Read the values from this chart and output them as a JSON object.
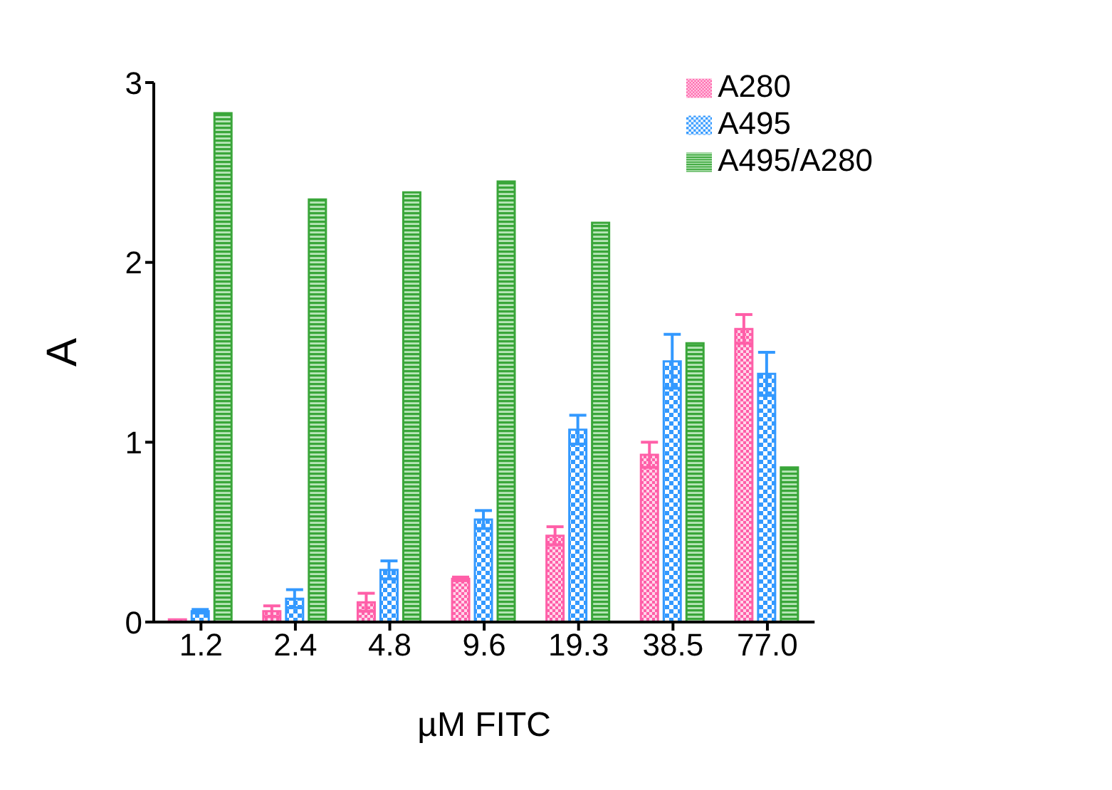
{
  "chart_data": {
    "type": "bar",
    "xlabel": "µM FITC",
    "ylabel": "A",
    "categories": [
      "1.2",
      "2.4",
      "4.8",
      "9.6",
      "19.3",
      "38.5",
      "77.0"
    ],
    "series": [
      {
        "name": "A280",
        "color": "#ff5fa8",
        "values": [
          0.015,
          0.06,
          0.11,
          0.24,
          0.48,
          0.93,
          1.63
        ],
        "errors": [
          null,
          0.03,
          0.05,
          0.01,
          0.05,
          0.07,
          0.08
        ]
      },
      {
        "name": "A495",
        "color": "#3399ff",
        "values": [
          0.06,
          0.13,
          0.29,
          0.57,
          1.07,
          1.45,
          1.38
        ],
        "errors": [
          0.01,
          0.05,
          0.05,
          0.05,
          0.08,
          0.15,
          0.12
        ]
      },
      {
        "name": "A495/A280",
        "color": "#3aa63a",
        "values": [
          2.83,
          2.35,
          2.39,
          2.45,
          2.22,
          1.55,
          0.86
        ]
      }
    ],
    "ylim": [
      0,
      3
    ],
    "yticks": [
      0,
      1,
      2,
      3
    ],
    "grid": false,
    "legend": "top right"
  }
}
